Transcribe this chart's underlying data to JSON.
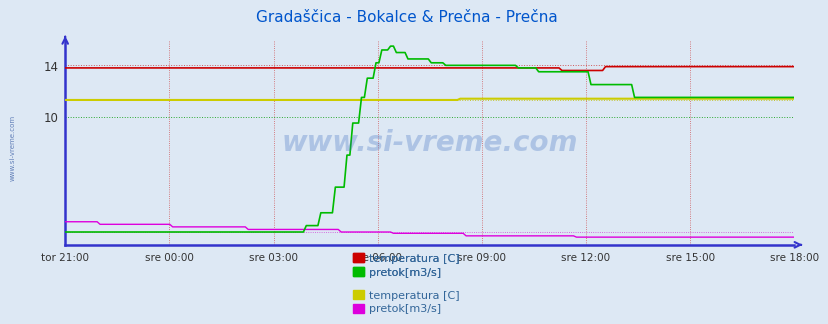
{
  "title": "Gradaščica - Bokalce & Prečna - Prečna",
  "title_color": "#0055cc",
  "bg_color": "#dde8f4",
  "plot_bg_color": "#dde8f4",
  "ylim": [
    0.0,
    16.0
  ],
  "yticks": [
    10,
    14
  ],
  "xticklabels": [
    "tor 21:00",
    "sre 00:00",
    "sre 03:00",
    "sre 06:00",
    "sre 09:00",
    "sre 12:00",
    "sre 15:00",
    "sre 18:00"
  ],
  "watermark": "www.si-vreme.com",
  "watermark_color": "#3366bb",
  "line_red": "#cc0000",
  "line_green": "#00bb00",
  "line_yellow": "#cccc00",
  "line_magenta": "#dd00dd",
  "axes_color": "#3333cc",
  "vgrid_color": "#cc3333",
  "n_points": 252,
  "legend1a": "temperatura [C]",
  "legend1b": "pretok[m3/s]",
  "legend2a": "temperatura [C]",
  "legend2b": "pretok[m3/s]",
  "legend_color1a": "#cc0000",
  "legend_color1b": "#00bb00",
  "legend_color2a": "#cccc00",
  "legend_color2b": "#dd00dd",
  "legend_text_color": "#336699"
}
